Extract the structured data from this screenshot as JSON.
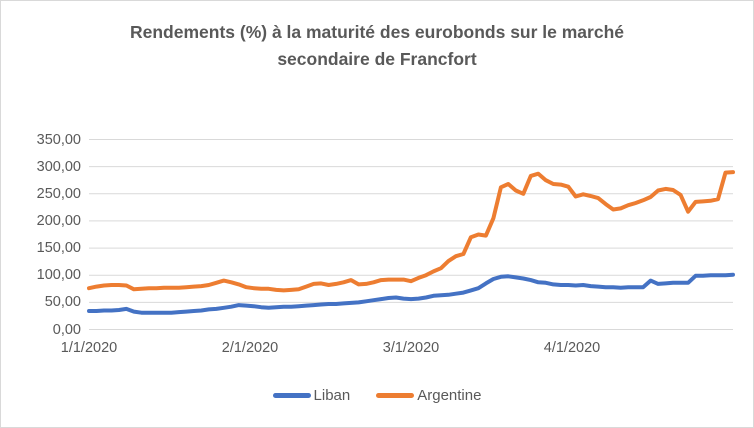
{
  "title": "Rendements (%) à la maturité des eurobonds  sur le marché secondaire de Francfort",
  "chart_data": {
    "type": "line",
    "title": "Rendements (%) à la maturité des eurobonds  sur le marché secondaire de Francfort",
    "xlabel": "",
    "ylabel": "",
    "ylim": [
      0,
      350
    ],
    "y_tick_step": 50,
    "y_tick_labels": [
      "0,00",
      "50,00",
      "100,00",
      "150,00",
      "200,00",
      "250,00",
      "300,00",
      "350,00"
    ],
    "x_tick_labels": [
      "1/1/2020",
      "2/1/2020",
      "3/1/2020",
      "4/1/2020"
    ],
    "grid": true,
    "legend_position": "bottom",
    "colors": {
      "liban": "#4472C4",
      "argentine": "#ED7D31",
      "gridline": "#D9D9D9",
      "text": "#595959"
    },
    "series": [
      {
        "name": "Liban",
        "color": "#4472C4",
        "values": [
          34,
          34,
          35,
          35,
          36,
          38,
          33,
          31,
          31,
          31,
          31,
          31,
          32,
          33,
          34,
          35,
          37,
          38,
          40,
          42,
          45,
          44,
          43,
          41,
          40,
          41,
          42,
          42,
          43,
          44,
          45,
          46,
          47,
          47,
          48,
          49,
          50,
          52,
          54,
          56,
          58,
          59,
          57,
          56,
          57,
          59,
          62,
          63,
          64,
          66,
          68,
          72,
          76,
          85,
          93,
          97,
          98,
          96,
          94,
          91,
          87,
          86,
          83,
          82,
          82,
          81,
          82,
          80,
          79,
          78,
          78,
          77,
          78,
          78,
          78,
          90,
          84,
          85,
          86,
          86,
          86,
          99,
          99,
          100,
          100,
          100,
          101
        ]
      },
      {
        "name": "Argentine",
        "color": "#ED7D31",
        "values": [
          76,
          79,
          81,
          82,
          82,
          81,
          74,
          75,
          76,
          76,
          77,
          77,
          77,
          78,
          79,
          80,
          82,
          86,
          90,
          87,
          83,
          78,
          76,
          75,
          75,
          73,
          72,
          73,
          74,
          79,
          84,
          85,
          82,
          84,
          87,
          91,
          83,
          84,
          87,
          91,
          92,
          92,
          92,
          89,
          95,
          100,
          107,
          113,
          126,
          135,
          139,
          170,
          175,
          173,
          205,
          262,
          268,
          256,
          250,
          283,
          287,
          275,
          268,
          267,
          263,
          245,
          249,
          246,
          242,
          231,
          221,
          223,
          229,
          233,
          238,
          244,
          256,
          259,
          257,
          248,
          217,
          235,
          236,
          237,
          240,
          289,
          290
        ]
      }
    ]
  }
}
